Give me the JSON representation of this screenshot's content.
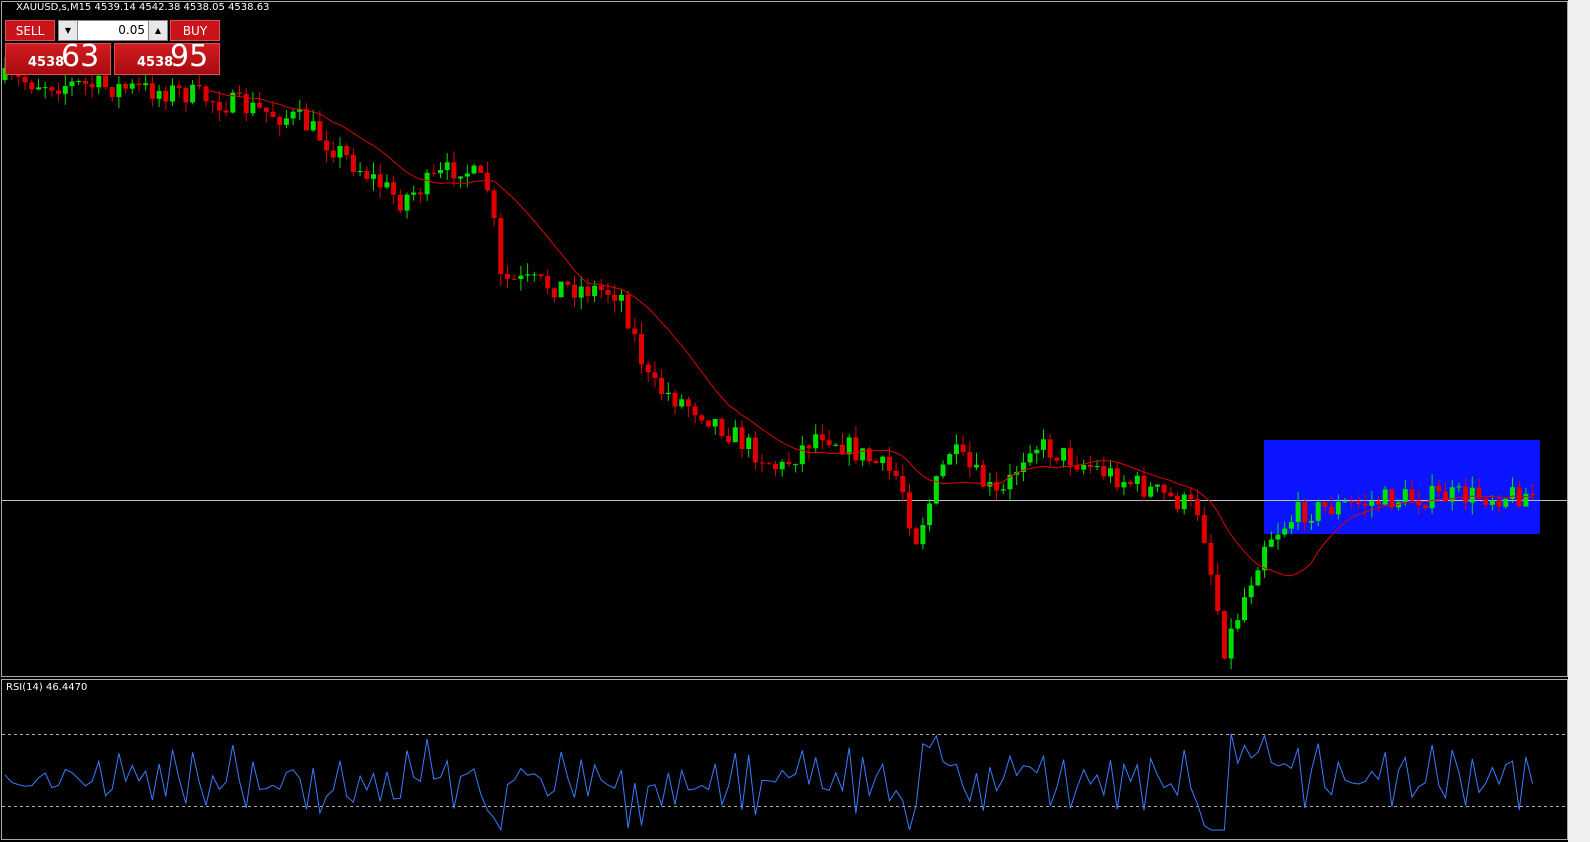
{
  "header": {
    "symbol_info": "XAUUSD,s,M15 4539.14 4542.38 4538.05 4538.63"
  },
  "trade_panel": {
    "sell": "SELL",
    "buy": "BUY",
    "volume": "0.05",
    "bid_big": "4538",
    "bid_small": "63",
    "ask_big": "4538",
    "ask_small": "95"
  },
  "indicator": {
    "label": "RSI(14) 46.4470"
  }
}
